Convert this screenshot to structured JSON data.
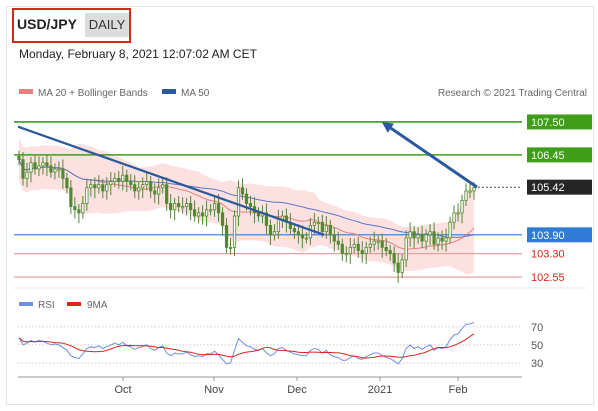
{
  "header": {
    "symbol": "USD/JPY",
    "period": "DAILY",
    "timestamp": "Monday, February 8, 2021 12:07:02 AM CET"
  },
  "legend": {
    "ma20": "MA 20 + Bollinger Bands",
    "ma50": "MA 50",
    "credit": "Research © 2021 Trading Central",
    "rsi": "RSI",
    "rsi_ma": "9MA"
  },
  "colors": {
    "resistance": "#3f9d1a",
    "support": "#e9a0a0",
    "pivot": "#2f7bd6",
    "trend": "#2a5a9c",
    "ma20": "#e88080",
    "ma50": "#5a78c8",
    "bollinger_fill": "#fde0e0",
    "candle": "#4f8a2f",
    "rsi": "#6f8fe6",
    "rsi_ma": "#d9251c"
  },
  "chart_data": [
    {
      "type": "candlestick",
      "x_range": [
        "2020-09-07",
        "2021-02-08"
      ],
      "y_range": [
        102.3,
        108.2
      ],
      "levels": [
        {
          "label": "107.50",
          "value": 107.5,
          "kind": "resistance"
        },
        {
          "label": "106.45",
          "value": 106.45,
          "kind": "resistance"
        },
        {
          "label": "105.42",
          "value": 105.42,
          "kind": "last"
        },
        {
          "label": "103.90",
          "value": 103.9,
          "kind": "pivot"
        },
        {
          "label": "103.30",
          "value": 103.3,
          "kind": "support"
        },
        {
          "label": "102.55",
          "value": 102.55,
          "kind": "support"
        }
      ],
      "closes": [
        106.3,
        105.7,
        105.9,
        106.2,
        106.0,
        106.1,
        106.2,
        106.1,
        105.9,
        106.0,
        106.0,
        105.7,
        105.4,
        104.8,
        104.7,
        104.6,
        104.9,
        105.4,
        105.5,
        105.4,
        105.5,
        105.3,
        105.5,
        105.6,
        105.7,
        105.6,
        105.8,
        105.6,
        105.5,
        105.3,
        105.4,
        105.5,
        105.6,
        105.3,
        105.2,
        105.4,
        105.5,
        104.9,
        104.7,
        104.9,
        104.8,
        104.8,
        104.9,
        104.7,
        104.5,
        104.6,
        104.5,
        104.7,
        104.7,
        104.9,
        104.6,
        104.2,
        103.5,
        103.5,
        104.5,
        105.4,
        105.2,
        104.9,
        104.8,
        104.6,
        104.5,
        104.6,
        104.2,
        103.9,
        104.0,
        104.4,
        104.5,
        104.3,
        104.1,
        104.0,
        103.9,
        103.8,
        103.8,
        104.2,
        104.3,
        104.3,
        104.0,
        104.2,
        103.9,
        103.7,
        103.6,
        103.3,
        103.3,
        103.5,
        103.6,
        103.4,
        103.3,
        103.5,
        103.6,
        103.7,
        103.7,
        103.5,
        103.4,
        103.3,
        103.0,
        102.7,
        103.1,
        103.8,
        104.0,
        103.8,
        103.9,
        103.7,
        103.9,
        104.0,
        103.6,
        103.8,
        103.7,
        103.8,
        104.3,
        104.6,
        104.6,
        105.0,
        105.3,
        105.3,
        105.4
      ],
      "trendline": [
        [
          "2020-09-07",
          107.35
        ],
        [
          "2021-01-28",
          103.9
        ]
      ],
      "arrow": [
        [
          "2021-02-05",
          105.42
        ],
        [
          "2021-02-24",
          107.5
        ]
      ],
      "x_ticks": [
        "Oct",
        "Nov",
        "Dec",
        "2021",
        "Feb"
      ]
    },
    {
      "type": "line",
      "series": [
        {
          "name": "RSI"
        },
        {
          "name": "9MA"
        }
      ],
      "y_ticks": [
        70,
        50,
        30
      ],
      "y_range": [
        20,
        82
      ],
      "rsi": [
        58,
        50,
        52,
        55,
        53,
        55,
        54,
        52,
        50,
        51,
        50,
        47,
        44,
        38,
        36,
        35,
        40,
        46,
        48,
        47,
        49,
        46,
        48,
        50,
        52,
        50,
        53,
        49,
        48,
        45,
        47,
        48,
        50,
        46,
        44,
        47,
        49,
        41,
        38,
        41,
        40,
        40,
        42,
        39,
        37,
        38,
        37,
        40,
        40,
        43,
        39,
        34,
        29,
        30,
        44,
        57,
        53,
        49,
        48,
        45,
        44,
        46,
        41,
        38,
        40,
        46,
        47,
        44,
        42,
        40,
        39,
        38,
        38,
        44,
        46,
        45,
        41,
        44,
        39,
        37,
        36,
        33,
        33,
        36,
        38,
        35,
        34,
        37,
        39,
        41,
        41,
        38,
        36,
        35,
        32,
        29,
        35,
        46,
        50,
        46,
        48,
        45,
        48,
        50,
        44,
        47,
        46,
        48,
        56,
        61,
        62,
        68,
        73,
        73,
        75
      ]
    }
  ]
}
